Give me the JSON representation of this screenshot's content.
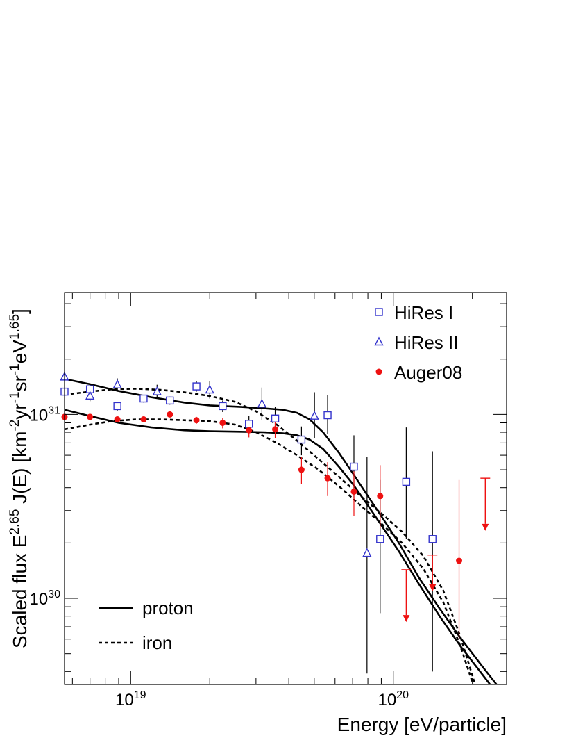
{
  "chart_data": {
    "type": "scatter",
    "title": "",
    "xlabel": "Energy [eV/particle]",
    "ylabel_parts": {
      "prefix": "Scaled flux   E",
      "e_exp": "2.65",
      "mid": " J(E) [km",
      "km_exp": "-2",
      "yr": "yr",
      "yr_exp": "-1",
      "sr": "sr",
      "sr_exp": "-1",
      "ev": "eV",
      "ev_exp": "1.65",
      "close": "]"
    },
    "x_scale": "log",
    "y_scale": "log",
    "xlim": [
      5.6e+18,
      2.7e+20
    ],
    "ylim": [
      3.4e+29,
      4.6e+31
    ],
    "x_ticks": [
      {
        "value": 1e+19,
        "base": "10",
        "exp": "19"
      },
      {
        "value": 1e+20,
        "base": "10",
        "exp": "20"
      }
    ],
    "y_ticks": [
      {
        "value": 1e+30,
        "base": "10",
        "exp": "30"
      },
      {
        "value": 1e+31,
        "base": "10",
        "exp": "31"
      }
    ],
    "grid": false,
    "legend": {
      "placement": "top-right",
      "entries": [
        {
          "label": "HiRes I",
          "marker": "open-square",
          "color": "#3333cc"
        },
        {
          "label": "HiRes II",
          "marker": "open-triangle",
          "color": "#3333cc"
        },
        {
          "label": "Auger08",
          "marker": "filled-circle",
          "color": "#ee1111"
        }
      ]
    },
    "legend_lines": {
      "placement": "bottom-left",
      "entries": [
        {
          "label": "proton",
          "style": "solid"
        },
        {
          "label": "iron",
          "style": "dashed"
        }
      ]
    },
    "series": [
      {
        "name": "HiRes I",
        "marker": "open-square",
        "color": "#3333cc",
        "errcolor": "#000000",
        "points": [
          {
            "x": 5.6e+18,
            "y": 1.33e+31,
            "lo": 1.29e+31,
            "hi": 1.37e+31
          },
          {
            "x": 7e+18,
            "y": 1.37e+31,
            "lo": 1.32e+31,
            "hi": 1.42e+31
          },
          {
            "x": 8.9e+18,
            "y": 1.11e+31,
            "lo": 1.05e+31,
            "hi": 1.17e+31
          },
          {
            "x": 1.12e+19,
            "y": 1.22e+31,
            "lo": 1.16e+31,
            "hi": 1.28e+31
          },
          {
            "x": 1.41e+19,
            "y": 1.19e+31,
            "lo": 1.13e+31,
            "hi": 1.25e+31
          },
          {
            "x": 1.78e+19,
            "y": 1.42e+31,
            "lo": 1.33e+31,
            "hi": 1.51e+31
          },
          {
            "x": 2.24e+19,
            "y": 1.11e+31,
            "lo": 1.03e+31,
            "hi": 1.19e+31
          },
          {
            "x": 2.82e+19,
            "y": 8.9e+30,
            "lo": 8e+30,
            "hi": 9.8e+30
          },
          {
            "x": 3.55e+19,
            "y": 9.5e+30,
            "lo": 8.2e+30,
            "hi": 1.1e+31
          },
          {
            "x": 4.47e+19,
            "y": 7.3e+30,
            "lo": 6e+30,
            "hi": 8.6e+30
          },
          {
            "x": 5.62e+19,
            "y": 9.9e+30,
            "lo": 7.8e+30,
            "hi": 1.28e+31
          },
          {
            "x": 7.08e+19,
            "y": 5.2e+30,
            "lo": 3.5e+30,
            "hi": 7.7e+30
          },
          {
            "x": 8.91e+19,
            "y": 2.1e+30,
            "lo": 8.3e+29,
            "hi": 4.4e+30
          },
          {
            "x": 1.12e+20,
            "y": 4.3e+30,
            "lo": 2.1e+30,
            "hi": 8.5e+30
          },
          {
            "x": 1.41e+20,
            "y": 2.1e+30,
            "lo": 4e+29,
            "hi": 6.3e+30
          }
        ]
      },
      {
        "name": "HiRes II",
        "marker": "open-triangle",
        "color": "#3333cc",
        "errcolor": "#000000",
        "points": [
          {
            "x": 5.6e+18,
            "y": 1.6e+31,
            "lo": 1.5e+31,
            "hi": 1.7e+31
          },
          {
            "x": 7e+18,
            "y": 1.26e+31,
            "lo": 1.18e+31,
            "hi": 1.34e+31
          },
          {
            "x": 8.9e+18,
            "y": 1.45e+31,
            "lo": 1.33e+31,
            "hi": 1.57e+31
          },
          {
            "x": 1.26e+19,
            "y": 1.33e+31,
            "lo": 1.23e+31,
            "hi": 1.45e+31
          },
          {
            "x": 2e+19,
            "y": 1.36e+31,
            "lo": 1.22e+31,
            "hi": 1.52e+31
          },
          {
            "x": 3.16e+19,
            "y": 1.14e+31,
            "lo": 9.3e+30,
            "hi": 1.4e+31
          },
          {
            "x": 5.01e+19,
            "y": 9.8e+30,
            "lo": 7.4e+30,
            "hi": 1.32e+31
          },
          {
            "x": 7.94e+19,
            "y": 1.76e+30,
            "lo": 3.9e+29,
            "hi": 5.9e+30
          }
        ]
      },
      {
        "name": "Auger08",
        "marker": "filled-circle",
        "color": "#ee1111",
        "errcolor": "#ee1111",
        "points": [
          {
            "x": 5.6e+18,
            "y": 9.7e+30,
            "lo": 9.5e+30,
            "hi": 9.9e+30
          },
          {
            "x": 7e+18,
            "y": 9.7e+30,
            "lo": 9.5e+30,
            "hi": 9.9e+30
          },
          {
            "x": 8.9e+18,
            "y": 9.4e+30,
            "lo": 9.1e+30,
            "hi": 9.7e+30
          },
          {
            "x": 1.12e+19,
            "y": 9.4e+30,
            "lo": 9.1e+30,
            "hi": 9.7e+30
          },
          {
            "x": 1.41e+19,
            "y": 1e+31,
            "lo": 9.7e+30,
            "hi": 1.03e+31
          },
          {
            "x": 1.78e+19,
            "y": 9.3e+30,
            "lo": 8.9e+30,
            "hi": 9.7e+30
          },
          {
            "x": 2.24e+19,
            "y": 9e+30,
            "lo": 8.4e+30,
            "hi": 9.6e+30
          },
          {
            "x": 2.82e+19,
            "y": 8.2e+30,
            "lo": 7.5e+30,
            "hi": 8.9e+30
          },
          {
            "x": 3.55e+19,
            "y": 8.3e+30,
            "lo": 7.4e+30,
            "hi": 9.2e+30
          },
          {
            "x": 4.47e+19,
            "y": 5e+30,
            "lo": 4.2e+30,
            "hi": 5.9e+30
          },
          {
            "x": 5.62e+19,
            "y": 4.5e+30,
            "lo": 3.6e+30,
            "hi": 5.5e+30
          },
          {
            "x": 7.08e+19,
            "y": 3.8e+30,
            "lo": 2.8e+30,
            "hi": 4.9e+30
          },
          {
            "x": 8.91e+19,
            "y": 3.6e+30,
            "lo": 2.4e+30,
            "hi": 5.3e+30
          },
          {
            "x": 1.78e+20,
            "y": 1.6e+30,
            "lo": 6e+29,
            "hi": 4.4e+30
          }
        ],
        "upper_limits": [
          {
            "x": 1.12e+20,
            "y": 1.43e+30,
            "to": 7.5e+29
          },
          {
            "x": 1.41e+20,
            "y": 1.72e+30,
            "to": 1.1e+30
          },
          {
            "x": 2.24e+20,
            "y": 4.5e+30,
            "to": 2.35e+30
          }
        ]
      },
      {
        "name": "proton",
        "kind": "curve",
        "style": "solid",
        "color": "#000000",
        "x": [
          5.6e+18,
          7e+18,
          9e+18,
          1.2e+19,
          1.6e+19,
          2e+19,
          2.6e+19,
          3.2e+19,
          3.8e+19,
          4.3e+19,
          4.8e+19,
          5.4e+19,
          6.2e+19,
          7e+19,
          8e+19,
          9e+19,
          1.05e+20,
          1.25e+20,
          1.5e+20,
          1.8e+20,
          2.2e+20,
          2.7e+20
        ],
        "y": [
          1.56e+31,
          1.46e+31,
          1.34e+31,
          1.24e+31,
          1.16e+31,
          1.12e+31,
          1.1e+31,
          1.08e+31,
          1.06e+31,
          1.02e+31,
          9.4e+30,
          8e+30,
          6.2e+30,
          4.8e+30,
          3.6e+30,
          2.8e+30,
          2e+30,
          1.3e+30,
          8.8e+29,
          6.1e+29,
          4.2e+29,
          2.9e+29
        ]
      },
      {
        "name": "proton",
        "kind": "curve",
        "style": "solid",
        "color": "#000000",
        "x": [
          5.6e+18,
          7e+18,
          9e+18,
          1.2e+19,
          1.6e+19,
          2e+19,
          2.6e+19,
          3.2e+19,
          3.8e+19,
          4.3e+19,
          4.8e+19,
          5.4e+19,
          6.2e+19,
          7e+19,
          8e+19,
          9e+19,
          1.05e+20,
          1.25e+20,
          1.5e+20,
          1.8e+20,
          2.2e+20,
          2.7e+20
        ],
        "y": [
          1.06e+31,
          9.8e+30,
          9e+30,
          8.5e+30,
          8.2e+30,
          8.1e+30,
          8.05e+30,
          8e+30,
          7.9e+30,
          7.7e+30,
          7.3e+30,
          6.5e+30,
          5.2e+30,
          4.2e+30,
          3.2e+30,
          2.5e+30,
          1.8e+30,
          1.2e+30,
          8e+29,
          5.5e+29,
          3.8e+29,
          2.6e+29
        ]
      },
      {
        "name": "iron",
        "kind": "curve",
        "style": "dashed",
        "color": "#000000",
        "x": [
          5.6e+18,
          7e+18,
          8.5e+18,
          1.05e+19,
          1.3e+19,
          1.6e+19,
          2e+19,
          2.5e+19,
          3e+19,
          3.6e+19,
          4.3e+19,
          5.2e+19,
          6.3e+19,
          7.5e+19,
          9e+19,
          1.08e+20,
          1.3e+20,
          1.55e+20,
          1.8e+20,
          2e+20,
          2.2e+20
        ],
        "y": [
          1.28e+31,
          1.33e+31,
          1.37e+31,
          1.38e+31,
          1.36e+31,
          1.32e+31,
          1.26e+31,
          1.17e+31,
          1.04e+31,
          8.8e+30,
          7.2e+30,
          5.7e+30,
          4.5e+30,
          3.6e+30,
          2.9e+30,
          2.3e+30,
          1.7e+30,
          1.1e+30,
          6.2e+29,
          3.8e+29,
          2.4e+29
        ]
      },
      {
        "name": "iron",
        "kind": "curve",
        "style": "dashed",
        "color": "#000000",
        "x": [
          5.6e+18,
          7e+18,
          8.5e+18,
          1.05e+19,
          1.3e+19,
          1.6e+19,
          2e+19,
          2.5e+19,
          3e+19,
          3.6e+19,
          4.3e+19,
          5.2e+19,
          6.3e+19,
          7.5e+19,
          9e+19,
          1.08e+20,
          1.3e+20,
          1.55e+20,
          1.8e+20,
          2e+20,
          2.2e+20
        ],
        "y": [
          8.3e+30,
          8.8e+30,
          9.2e+30,
          9.4e+30,
          9.4e+30,
          9.3e+30,
          9.2e+30,
          8.8e+30,
          8e+30,
          7e+30,
          6e+30,
          5e+30,
          4e+30,
          3.2e+30,
          2.55e+30,
          2e+30,
          1.45e+30,
          9.5e+29,
          5.5e+29,
          3.5e+29,
          2.3e+29
        ]
      }
    ]
  }
}
